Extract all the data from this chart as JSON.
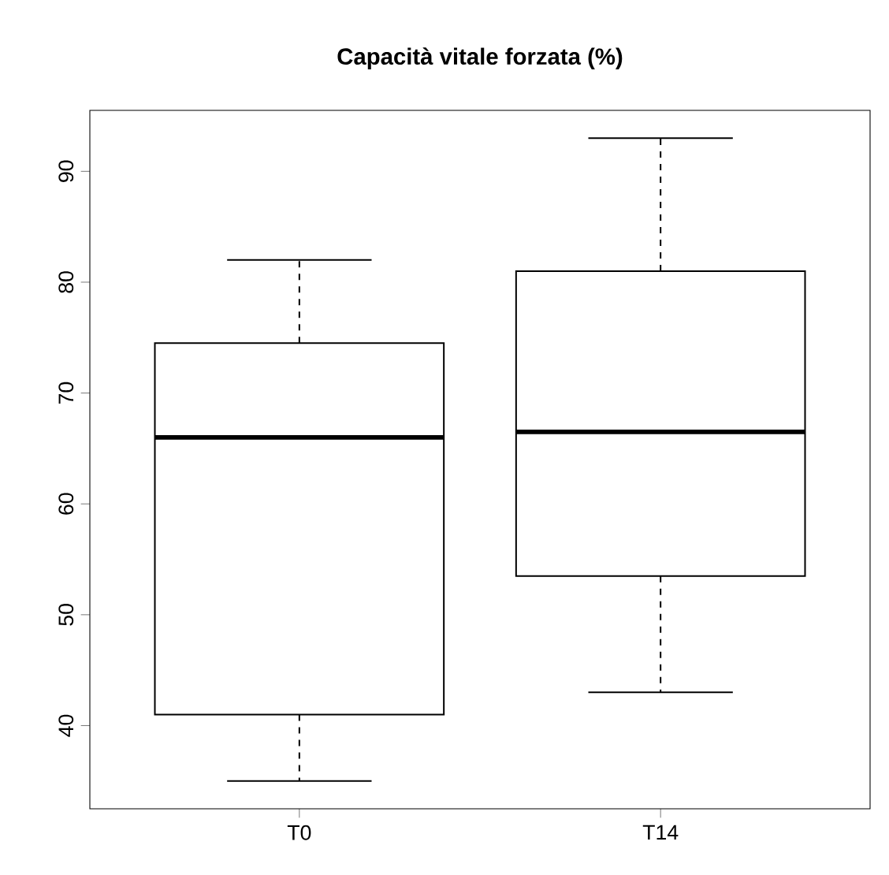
{
  "chart_data": {
    "type": "box",
    "title": "Capacità vitale forzata (%)",
    "categories": [
      "T0",
      "T14"
    ],
    "boxes": [
      {
        "low": 35,
        "q1": 41,
        "median": 66,
        "q3": 74.5,
        "high": 82
      },
      {
        "low": 43,
        "q1": 53.5,
        "median": 66.5,
        "q3": 81,
        "high": 93
      }
    ],
    "ylim": [
      32.5,
      95.5
    ],
    "yticks": [
      40,
      50,
      60,
      70,
      80,
      90
    ],
    "grid": false
  }
}
